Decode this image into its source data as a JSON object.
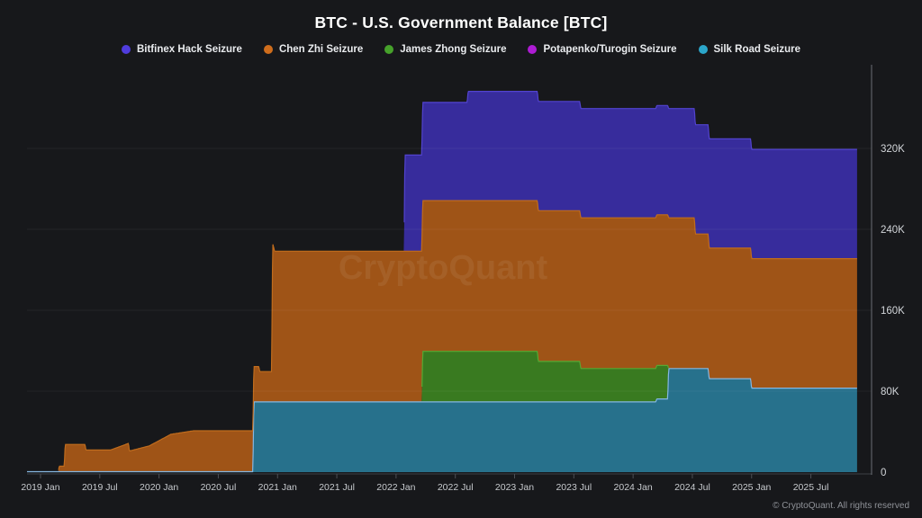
{
  "footer": {
    "attribution": "© CryptoQuant. All rights reserved"
  },
  "chart_data": {
    "type": "area",
    "stacked": true,
    "title": "BTC - U.S. Government Balance [BTC]",
    "watermark": "CryptoQuant",
    "legend_position": "top",
    "grid": true,
    "x_range": [
      "2018-12",
      "2025-11"
    ],
    "ylim": [
      0,
      400000
    ],
    "y_axis_side": "right",
    "y_ticks": [
      {
        "v": 0,
        "label": "0"
      },
      {
        "v": 80000,
        "label": "80K"
      },
      {
        "v": 160000,
        "label": "160K"
      },
      {
        "v": 240000,
        "label": "240K"
      },
      {
        "v": 320000,
        "label": "320K"
      }
    ],
    "x_ticks": [
      {
        "m": 0,
        "label": "2019 Jan"
      },
      {
        "m": 6,
        "label": "2019 Jul"
      },
      {
        "m": 12,
        "label": "2020 Jan"
      },
      {
        "m": 18,
        "label": "2020 Jul"
      },
      {
        "m": 24,
        "label": "2021 Jan"
      },
      {
        "m": 30,
        "label": "2021 Jul"
      },
      {
        "m": 36,
        "label": "2022 Jan"
      },
      {
        "m": 42,
        "label": "2022 Jul"
      },
      {
        "m": 48,
        "label": "2023 Jan"
      },
      {
        "m": 54,
        "label": "2023 Jul"
      },
      {
        "m": 60,
        "label": "2024 Jan"
      },
      {
        "m": 66,
        "label": "2024 Jul"
      },
      {
        "m": 72,
        "label": "2025 Jan"
      },
      {
        "m": 78,
        "label": "2025 Jul"
      }
    ],
    "series_note": "stack order bottom-to-top; months counted from 2019 Jan = 0; values in BTC",
    "series": [
      {
        "id": "silk-road",
        "name": "Silk Road Seizure",
        "fill": "#27718c",
        "stroke": "#86b7e1",
        "dot": "#2ba6ca",
        "points": [
          [
            -1.37,
            400
          ],
          [
            21.5,
            400
          ],
          [
            21.6,
            69400
          ],
          [
            62.3,
            69400
          ],
          [
            62.4,
            72400
          ],
          [
            63.5,
            72400
          ],
          [
            63.6,
            102400
          ],
          [
            67.6,
            102400
          ],
          [
            67.7,
            92400
          ],
          [
            71.9,
            92400
          ],
          [
            72.0,
            83000
          ],
          [
            82.7,
            83000
          ]
        ]
      },
      {
        "id": "james-zhong",
        "name": "James Zhong Seizure",
        "fill": "#397a20",
        "stroke": "#55a833",
        "dot": "#46a12b",
        "points": [
          [
            -1.37,
            0
          ],
          [
            38.6,
            0
          ],
          [
            38.7,
            50000
          ],
          [
            50.3,
            50000
          ],
          [
            50.4,
            40000
          ],
          [
            54.6,
            40000
          ],
          [
            54.7,
            33000
          ],
          [
            63.5,
            33000
          ],
          [
            63.6,
            0
          ],
          [
            82.7,
            0
          ]
        ]
      },
      {
        "id": "chen-zhi",
        "name": "Chen Zhi Seizure",
        "fill": "#9f5417",
        "stroke": "#c06c1d",
        "dot": "#cf6d1c",
        "points": [
          [
            -1.37,
            0
          ],
          [
            1.8,
            0
          ],
          [
            1.9,
            5500
          ],
          [
            2.4,
            5500
          ],
          [
            2.5,
            27000
          ],
          [
            4.5,
            27000
          ],
          [
            4.6,
            21500
          ],
          [
            7.1,
            21500
          ],
          [
            8.9,
            28000
          ],
          [
            9.0,
            20500
          ],
          [
            11.0,
            25500
          ],
          [
            13.2,
            37000
          ],
          [
            15.5,
            40500
          ],
          [
            21.5,
            40500
          ],
          [
            21.6,
            35000
          ],
          [
            22.1,
            35000
          ],
          [
            22.2,
            30000
          ],
          [
            23.4,
            30000
          ],
          [
            23.5,
            157000
          ],
          [
            23.7,
            149000
          ],
          [
            66.2,
            149000
          ],
          [
            66.3,
            133000
          ],
          [
            67.6,
            133000
          ],
          [
            67.7,
            129000
          ],
          [
            71.9,
            129000
          ],
          [
            72.0,
            128000
          ],
          [
            82.7,
            128000
          ]
        ]
      },
      {
        "id": "bitfinex-hack",
        "name": "Bitfinex Hack Seizure",
        "fill": "#372c9c",
        "stroke": "#5243cf",
        "dot": "#4f3cdd",
        "points": [
          [
            -1.37,
            0
          ],
          [
            36.8,
            0
          ],
          [
            36.9,
            95000
          ],
          [
            38.6,
            95000
          ],
          [
            38.7,
            97000
          ],
          [
            43.2,
            97000
          ],
          [
            43.3,
            108000
          ],
          [
            82.7,
            108000
          ]
        ]
      },
      {
        "id": "potapenko-turogin",
        "name": "Potapenko/Turogin Seizure",
        "fill": "#8a12a8",
        "stroke": "#c32be6",
        "dot": "#ae1cd4",
        "points": [
          [
            -1.37,
            0
          ],
          [
            82.7,
            0
          ]
        ]
      }
    ]
  }
}
